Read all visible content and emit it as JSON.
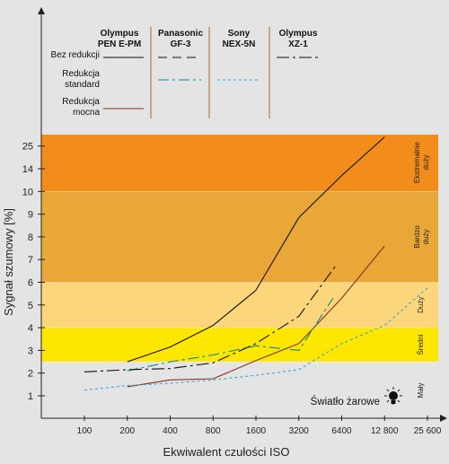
{
  "chart_data": {
    "type": "line",
    "xlabel": "Ekwiwalent czułości ISO",
    "ylabel": "Sygnał szumowy [%]",
    "x_ticks": [
      "100",
      "200",
      "400",
      "800",
      "1600",
      "3200",
      "6400",
      "12 800",
      "25 600"
    ],
    "y_ticks": [
      "1",
      "2",
      "3",
      "4",
      "5",
      "6",
      "7",
      "8",
      "9",
      "10",
      "14",
      "25"
    ],
    "bands": [
      {
        "label": "Mały",
        "from_rank": 0,
        "to_rank": 2.5,
        "color": "#e4e4e4"
      },
      {
        "label": "Średni",
        "from_rank": 2.5,
        "to_rank": 4,
        "color": "#fde600"
      },
      {
        "label": "Duży",
        "from_rank": 4,
        "to_rank": 6,
        "color": "#fcd67a"
      },
      {
        "label": "Bardzo duży",
        "from_rank": 6,
        "to_rank": 10,
        "color": "#e9a738"
      },
      {
        "label": "Ekstremalnie duży",
        "from_rank": 10,
        "to_rank": 12.5,
        "color": "#f28d1b"
      }
    ],
    "band_label_lines": {
      "Mały": [
        "Mały"
      ],
      "Średni": [
        "Średni"
      ],
      "Duży": [
        "Duży"
      ],
      "Bardzo duży": [
        "Bardzo",
        "duży"
      ],
      "Ekstremalnie duży": [
        "Ekstremalnie",
        "duży"
      ]
    },
    "legend": {
      "cameras": [
        {
          "name_lines": [
            "Olympus",
            "PEN E-PM"
          ],
          "color": "#111111"
        },
        {
          "name_lines": [
            "Panasonic",
            "GF-3"
          ],
          "color": "#111111"
        },
        {
          "name_lines": [
            "Sony",
            "NEX-5N"
          ],
          "color": "#111111"
        },
        {
          "name_lines": [
            "Olympus",
            "XZ-1"
          ],
          "color": "#111111"
        }
      ],
      "rows": [
        {
          "label_lines": [
            "Bez redukcji"
          ]
        },
        {
          "label_lines": [
            "Redukcja",
            "standard"
          ]
        },
        {
          "label_lines": [
            "Redukcja",
            "mocna"
          ]
        }
      ]
    },
    "series": [
      {
        "camera": "Olympus PEN E-PM",
        "mode": "Bez redukcji",
        "style": "solid",
        "color": "#111111",
        "x_rank": [
          1,
          2,
          3,
          4,
          5,
          6,
          7
        ],
        "y_rank": [
          2.5,
          3.15,
          4.1,
          5.65,
          8.85,
          10.7,
          12.4
        ]
      },
      {
        "camera": "Olympus PEN E-PM",
        "mode": "Redukcja mocna",
        "style": "solid",
        "color": "#8b2d1a",
        "x_rank": [
          1,
          2,
          3,
          4,
          5,
          6,
          7
        ],
        "y_rank": [
          1.4,
          1.7,
          1.75,
          2.55,
          3.3,
          5.3,
          7.6
        ]
      },
      {
        "camera": "Panasonic GF-3",
        "mode": "Redukcja standard",
        "style": "dashdot",
        "color": "#0a8a96",
        "x_rank": [
          1,
          2,
          3,
          4,
          4.5,
          5,
          5.8
        ],
        "y_rank": [
          2.1,
          2.5,
          2.8,
          3.2,
          3.1,
          3.0,
          5.3
        ]
      },
      {
        "camera": "Sony NEX-5N",
        "mode": "Redukcja standard",
        "style": "dotted",
        "color": "#35a6d8",
        "x_rank": [
          0,
          1,
          2,
          3,
          4,
          5,
          6,
          7,
          8
        ],
        "y_rank": [
          1.25,
          1.45,
          1.55,
          1.7,
          1.9,
          2.15,
          3.3,
          4.1,
          5.75
        ]
      },
      {
        "camera": "Olympus XZ-1",
        "mode": "Bez redukcji",
        "style": "longdashdot",
        "color": "#111111",
        "x_rank": [
          0,
          1,
          2,
          3,
          4,
          5,
          5.85
        ],
        "y_rank": [
          2.05,
          2.15,
          2.2,
          2.45,
          3.3,
          4.5,
          6.7
        ]
      }
    ],
    "annotation": "Światło żarowe",
    "annotation_icon": "light-bulb-icon",
    "grid": false,
    "x_scale": "log2",
    "ylim_rank": [
      0,
      12.5
    ]
  }
}
